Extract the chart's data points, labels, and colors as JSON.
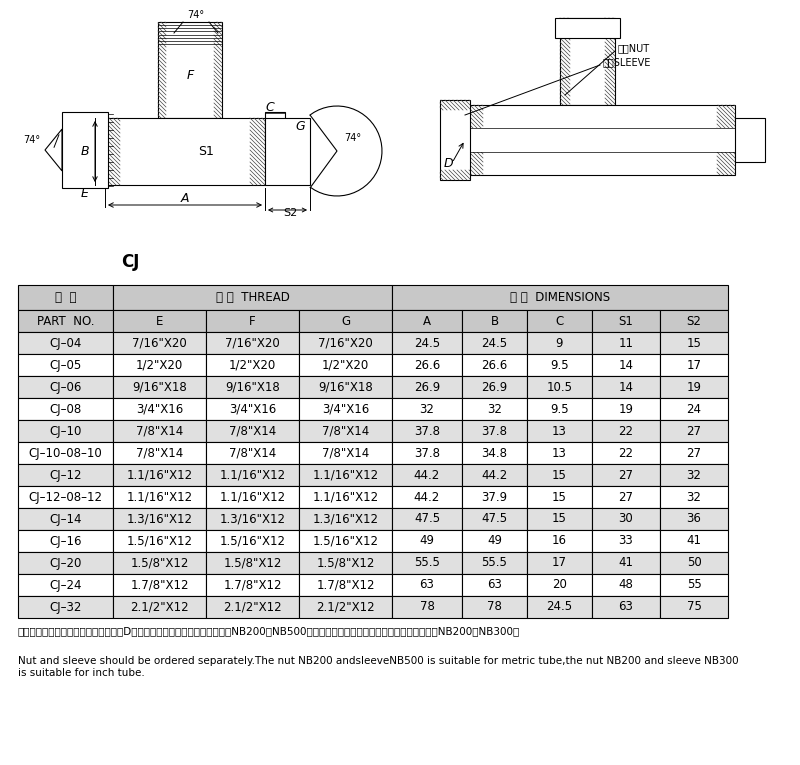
{
  "title": "CJ",
  "col_labels_row1_part": "代  号",
  "col_labels_row1_thread": "补 纹  THREAD",
  "col_labels_row1_dim": "尺 寸  DIMENSIONS",
  "col_labels_row2": [
    "PART  NO.",
    "E",
    "F",
    "G",
    "A",
    "B",
    "C",
    "S1",
    "S2"
  ],
  "rows": [
    [
      "CJ–04",
      "7/16\"X20",
      "7/16\"X20",
      "7/16\"X20",
      "24.5",
      "24.5",
      "9",
      "11",
      "15"
    ],
    [
      "CJ–05",
      "1/2\"X20",
      "1/2\"X20",
      "1/2\"X20",
      "26.6",
      "26.6",
      "9.5",
      "14",
      "17"
    ],
    [
      "CJ–06",
      "9/16\"X18",
      "9/16\"X18",
      "9/16\"X18",
      "26.9",
      "26.9",
      "10.5",
      "14",
      "19"
    ],
    [
      "CJ–08",
      "3/4\"X16",
      "3/4\"X16",
      "3/4\"X16",
      "32",
      "32",
      "9.5",
      "19",
      "24"
    ],
    [
      "CJ–10",
      "7/8\"X14",
      "7/8\"X14",
      "7/8\"X14",
      "37.8",
      "37.8",
      "13",
      "22",
      "27"
    ],
    [
      "CJ–10–08–10",
      "7/8\"X14",
      "7/8\"X14",
      "7/8\"X14",
      "37.8",
      "34.8",
      "13",
      "22",
      "27"
    ],
    [
      "CJ–12",
      "1.1/16\"X12",
      "1.1/16\"X12",
      "1.1/16\"X12",
      "44.2",
      "44.2",
      "15",
      "27",
      "32"
    ],
    [
      "CJ–12–08–12",
      "1.1/16\"X12",
      "1.1/16\"X12",
      "1.1/16\"X12",
      "44.2",
      "37.9",
      "15",
      "27",
      "32"
    ],
    [
      "CJ–14",
      "1.3/16\"X12",
      "1.3/16\"X12",
      "1.3/16\"X12",
      "47.5",
      "47.5",
      "15",
      "30",
      "36"
    ],
    [
      "CJ–16",
      "1.5/16\"X12",
      "1.5/16\"X12",
      "1.5/16\"X12",
      "49",
      "49",
      "16",
      "33",
      "41"
    ],
    [
      "CJ–20",
      "1.5/8\"X12",
      "1.5/8\"X12",
      "1.5/8\"X12",
      "55.5",
      "55.5",
      "17",
      "41",
      "50"
    ],
    [
      "CJ–24",
      "1.7/8\"X12",
      "1.7/8\"X12",
      "1.7/8\"X12",
      "63",
      "63",
      "20",
      "48",
      "55"
    ],
    [
      "CJ–32",
      "2.1/2\"X12",
      "2.1/2\"X12",
      "2.1/2\"X12",
      "78",
      "78",
      "24.5",
      "63",
      "75"
    ]
  ],
  "note_cn_line1": "注：螺母及衬套需另行订货。管子直径D为公制时，配用螺母及衬套分别选用NB200、NB500。管子直径为英制时，配用螺母及衬套分别选用",
  "note_cn_line2": "NB200、NB300。",
  "note_en": "Nut and sleeve should be ordered separately.The nut NB200 andsleeveNB500 is suitable for metric tube,the nut NB200 and sleeve NB300\nis suitable for inch tube.",
  "bg_color": "#ffffff",
  "hdr_bg": "#c8c8c8",
  "alt_bg": "#e0e0e0",
  "white_bg": "#ffffff",
  "border": "#000000"
}
